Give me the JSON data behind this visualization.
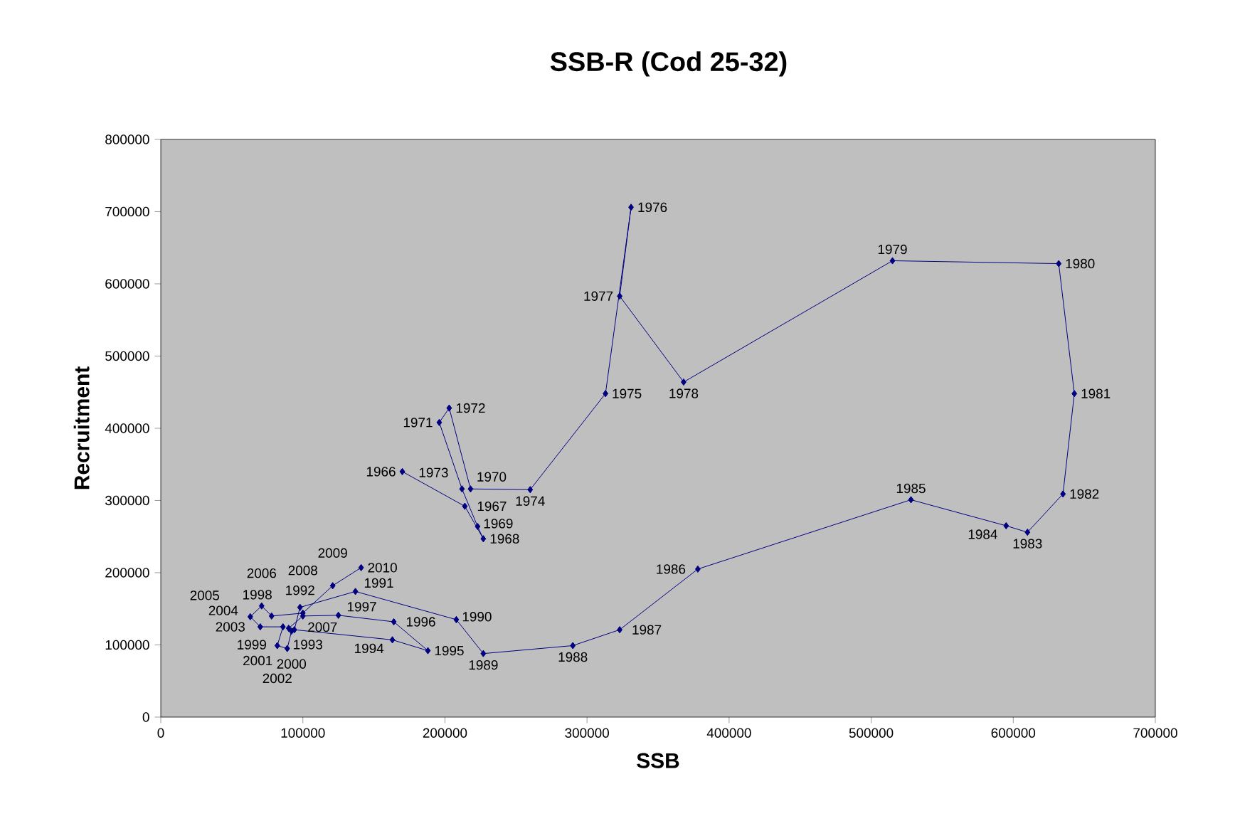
{
  "chart_data": {
    "type": "line",
    "title": "SSB-R (Cod 25-32)",
    "xlabel": "SSB",
    "ylabel": "Recruitment",
    "marker": "diamond",
    "line_style": "solid",
    "color": "#000080",
    "grid": false,
    "xlim": [
      0,
      700000
    ],
    "xticks": [
      0,
      100000,
      200000,
      300000,
      400000,
      500000,
      600000,
      700000
    ],
    "ylim": [
      0,
      800000
    ],
    "yticks": [
      0,
      100000,
      200000,
      300000,
      400000,
      500000,
      600000,
      700000,
      800000
    ],
    "x": [
      170000,
      214000,
      227000,
      223000,
      212000,
      196000,
      203000,
      218000,
      260000,
      313000,
      331000,
      323000,
      368000,
      515000,
      632000,
      643000,
      635000,
      610000,
      595000,
      528000,
      378000,
      323000,
      290000,
      227000,
      208000,
      137000,
      98000,
      94000,
      163000,
      188000,
      164000,
      125000,
      100000,
      90000,
      92000,
      89000,
      82000,
      86000,
      70000,
      63000,
      71000,
      78000,
      100000,
      121000,
      141000
    ],
    "values": [
      340000,
      292000,
      247000,
      264000,
      316000,
      408000,
      428000,
      316000,
      315000,
      448000,
      706000,
      583000,
      464000,
      632000,
      628000,
      448000,
      309000,
      256000,
      265000,
      301000,
      205000,
      121000,
      99000,
      88000,
      135000,
      174000,
      152000,
      121000,
      107000,
      92000,
      132000,
      141000,
      140000,
      123000,
      119000,
      95000,
      99000,
      125000,
      125000,
      139000,
      154000,
      140000,
      144000,
      182000,
      207000
    ],
    "annotations": [
      {
        "text": "1966",
        "x": 170000,
        "y": 340000
      },
      {
        "text": "1967",
        "x": 214000,
        "y": 292000
      },
      {
        "text": "1968",
        "x": 227000,
        "y": 247000
      },
      {
        "text": "1969",
        "x": 223000,
        "y": 264000
      },
      {
        "text": "1970",
        "x": 212000,
        "y": 316000
      },
      {
        "text": "1971",
        "x": 196000,
        "y": 408000
      },
      {
        "text": "1972",
        "x": 203000,
        "y": 428000
      },
      {
        "text": "1973",
        "x": 218000,
        "y": 316000
      },
      {
        "text": "1974",
        "x": 260000,
        "y": 315000
      },
      {
        "text": "1975",
        "x": 313000,
        "y": 448000
      },
      {
        "text": "1976",
        "x": 331000,
        "y": 706000
      },
      {
        "text": "1977",
        "x": 323000,
        "y": 583000
      },
      {
        "text": "1978",
        "x": 368000,
        "y": 464000
      },
      {
        "text": "1979",
        "x": 515000,
        "y": 632000
      },
      {
        "text": "1980",
        "x": 632000,
        "y": 628000
      },
      {
        "text": "1981",
        "x": 643000,
        "y": 448000
      },
      {
        "text": "1982",
        "x": 635000,
        "y": 309000
      },
      {
        "text": "1983",
        "x": 610000,
        "y": 256000
      },
      {
        "text": "1984",
        "x": 595000,
        "y": 265000
      },
      {
        "text": "1985",
        "x": 528000,
        "y": 301000
      },
      {
        "text": "1986",
        "x": 378000,
        "y": 205000
      },
      {
        "text": "1987",
        "x": 323000,
        "y": 121000
      },
      {
        "text": "1988",
        "x": 290000,
        "y": 99000
      },
      {
        "text": "1989",
        "x": 227000,
        "y": 88000
      },
      {
        "text": "1990",
        "x": 208000,
        "y": 135000
      },
      {
        "text": "1991",
        "x": 137000,
        "y": 174000
      },
      {
        "text": "1992",
        "x": 98000,
        "y": 152000
      },
      {
        "text": "1993",
        "x": 94000,
        "y": 121000
      },
      {
        "text": "1994",
        "x": 163000,
        "y": 107000
      },
      {
        "text": "1995",
        "x": 188000,
        "y": 92000
      },
      {
        "text": "1996",
        "x": 164000,
        "y": 132000
      },
      {
        "text": "1997",
        "x": 125000,
        "y": 141000
      },
      {
        "text": "1998",
        "x": 100000,
        "y": 140000
      },
      {
        "text": "1999",
        "x": 90000,
        "y": 123000
      },
      {
        "text": "2000",
        "x": 92000,
        "y": 119000
      },
      {
        "text": "2001",
        "x": 89000,
        "y": 95000
      },
      {
        "text": "2002",
        "x": 82000,
        "y": 99000
      },
      {
        "text": "2003",
        "x": 86000,
        "y": 125000
      },
      {
        "text": "2004",
        "x": 70000,
        "y": 125000
      },
      {
        "text": "2005",
        "x": 63000,
        "y": 139000
      },
      {
        "text": "2006",
        "x": 71000,
        "y": 154000
      },
      {
        "text": "2007",
        "x": 78000,
        "y": 140000
      },
      {
        "text": "2008",
        "x": 100000,
        "y": 144000
      },
      {
        "text": "2009",
        "x": 121000,
        "y": 182000
      },
      {
        "text": "2010",
        "x": 141000,
        "y": 207000
      }
    ]
  }
}
